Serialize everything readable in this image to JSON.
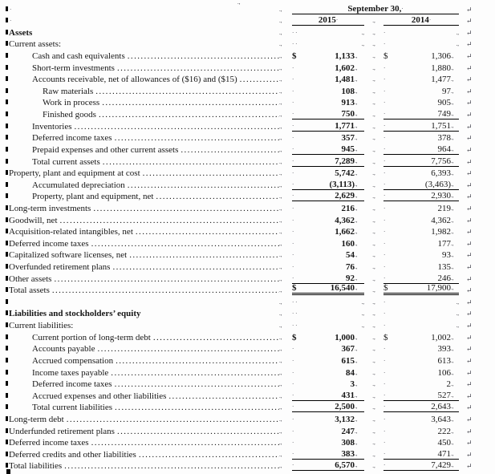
{
  "document": {
    "header": {
      "date_label": "September 30,",
      "col_2015": "2015",
      "col_2014": "2014"
    },
    "marks": {
      "paragraph_square": "",
      "tab_mark": ".,",
      "cell_end_mark": ".,",
      "space_dot": "·",
      "end_of_line": "↵",
      "stray_top": ".,"
    },
    "colors": {
      "text": "#161616",
      "marks": "#3c3c46",
      "rule": "#000000",
      "background": "#fdfdfd"
    },
    "rows": [
      {
        "type": "section",
        "label": "Assets",
        "bold": true,
        "indent": 0
      },
      {
        "type": "section",
        "label": "Current assets:",
        "bold": false,
        "indent": 0
      },
      {
        "type": "data",
        "label": "Cash and cash equivalents",
        "indent": 1,
        "dollar": true,
        "v2015": "1,133",
        "v2014": "1,306",
        "underline": "none"
      },
      {
        "type": "data",
        "label": "Short-term investments",
        "indent": 1,
        "dollar": false,
        "v2015": "1,602",
        "v2014": "1,880",
        "underline": "none"
      },
      {
        "type": "data",
        "label": "Accounts receivable, net of allowances of ($16) and ($15)",
        "indent": 1,
        "dollar": false,
        "v2015": "1,481",
        "v2014": "1,477",
        "underline": "none"
      },
      {
        "type": "data",
        "label": "Raw materials",
        "indent": 2,
        "dollar": false,
        "v2015": "108",
        "v2014": "97",
        "underline": "none"
      },
      {
        "type": "data",
        "label": "Work in process",
        "indent": 2,
        "dollar": false,
        "v2015": "913",
        "v2014": "905",
        "underline": "none"
      },
      {
        "type": "data",
        "label": "Finished goods",
        "indent": 2,
        "dollar": false,
        "v2015": "750",
        "v2014": "749",
        "underline": "single"
      },
      {
        "type": "data",
        "label": "Inventories",
        "indent": 1,
        "dollar": false,
        "v2015": "1,771",
        "v2014": "1,751",
        "underline": "single"
      },
      {
        "type": "data",
        "label": "Deferred income taxes",
        "indent": 1,
        "dollar": false,
        "v2015": "357",
        "v2014": "378",
        "underline": "none"
      },
      {
        "type": "data",
        "label": "Prepaid expenses and other current assets",
        "indent": 1,
        "dollar": false,
        "v2015": "945",
        "v2014": "964",
        "underline": "single"
      },
      {
        "type": "data",
        "label": "Total current assets",
        "indent": 1,
        "dollar": false,
        "v2015": "7,289",
        "v2014": "7,756",
        "underline": "single"
      },
      {
        "type": "data",
        "label": "Property, plant and equipment at cost",
        "indent": 0,
        "dollar": false,
        "v2015": "5,742",
        "v2014": "6,393",
        "underline": "none"
      },
      {
        "type": "data",
        "label": "Accumulated depreciation",
        "indent": 1,
        "dollar": false,
        "v2015": "(3,113)",
        "v2014": "(3,463)",
        "underline": "single"
      },
      {
        "type": "data",
        "label": "Property, plant and equipment, net",
        "indent": 1,
        "dollar": false,
        "v2015": "2,629",
        "v2014": "2,930",
        "underline": "single"
      },
      {
        "type": "data",
        "label": "Long-term investments",
        "indent": 0,
        "dollar": false,
        "v2015": "216",
        "v2014": "219",
        "underline": "none"
      },
      {
        "type": "data",
        "label": "Goodwill, net",
        "indent": 0,
        "dollar": false,
        "v2015": "4,362",
        "v2014": "4,362",
        "underline": "none"
      },
      {
        "type": "data",
        "label": "Acquisition-related intangibles, net",
        "indent": 0,
        "dollar": false,
        "v2015": "1,662",
        "v2014": "1,982",
        "underline": "none"
      },
      {
        "type": "data",
        "label": "Deferred income taxes",
        "indent": 0,
        "dollar": false,
        "v2015": "160",
        "v2014": "177",
        "underline": "none"
      },
      {
        "type": "data",
        "label": "Capitalized software licenses, net",
        "indent": 0,
        "dollar": false,
        "v2015": "54",
        "v2014": "93",
        "underline": "none"
      },
      {
        "type": "data",
        "label": "Overfunded retirement plans",
        "indent": 0,
        "dollar": false,
        "v2015": "76",
        "v2014": "135",
        "underline": "none"
      },
      {
        "type": "data",
        "label": "Other assets",
        "indent": 0,
        "dollar": false,
        "v2015": "92",
        "v2014": "246",
        "underline": "single"
      },
      {
        "type": "data",
        "label": "Total assets",
        "indent": 0,
        "dollar": true,
        "v2015": "16,540",
        "v2014": "17,900",
        "underline": "double"
      },
      {
        "type": "blank"
      },
      {
        "type": "section",
        "label": "Liabilities and stockholders’ equity",
        "bold": true,
        "indent": 0
      },
      {
        "type": "section",
        "label": "Current liabilities:",
        "bold": false,
        "indent": 0
      },
      {
        "type": "data",
        "label": "Current portion of long-term debt",
        "indent": 1,
        "dollar": true,
        "v2015": "1,000",
        "v2014": "1,002",
        "underline": "none"
      },
      {
        "type": "data",
        "label": "Accounts payable",
        "indent": 1,
        "dollar": false,
        "v2015": "367",
        "v2014": "393",
        "underline": "none"
      },
      {
        "type": "data",
        "label": "Accrued compensation",
        "indent": 1,
        "dollar": false,
        "v2015": "615",
        "v2014": "613",
        "underline": "none"
      },
      {
        "type": "data",
        "label": "Income taxes payable",
        "indent": 1,
        "dollar": false,
        "v2015": "84",
        "v2014": "106",
        "underline": "none"
      },
      {
        "type": "data",
        "label": "Deferred income taxes",
        "indent": 1,
        "dollar": false,
        "v2015": "3",
        "v2014": "2",
        "underline": "none"
      },
      {
        "type": "data",
        "label": "Accrued expenses and other liabilities",
        "indent": 1,
        "dollar": false,
        "v2015": "431",
        "v2014": "527",
        "underline": "single"
      },
      {
        "type": "data",
        "label": "Total current liabilities",
        "indent": 1,
        "dollar": false,
        "v2015": "2,500",
        "v2014": "2,643",
        "underline": "single"
      },
      {
        "type": "data",
        "label": "Long-term debt",
        "indent": 0,
        "dollar": false,
        "v2015": "3,132",
        "v2014": "3,643",
        "underline": "none"
      },
      {
        "type": "data",
        "label": "Underfunded retirement plans",
        "indent": 0,
        "dollar": false,
        "v2015": "247",
        "v2014": "222",
        "underline": "none"
      },
      {
        "type": "data",
        "label": "Deferred income taxes",
        "indent": 0,
        "dollar": false,
        "v2015": "308",
        "v2014": "450",
        "underline": "none"
      },
      {
        "type": "data",
        "label": "Deferred credits and other liabilities",
        "indent": 0,
        "dollar": false,
        "v2015": "383",
        "v2014": "471",
        "underline": "single"
      },
      {
        "type": "data",
        "label": "Total liabilities",
        "indent": 0,
        "dollar": false,
        "v2015": "6,570",
        "v2014": "7,429",
        "underline": "single"
      }
    ]
  }
}
